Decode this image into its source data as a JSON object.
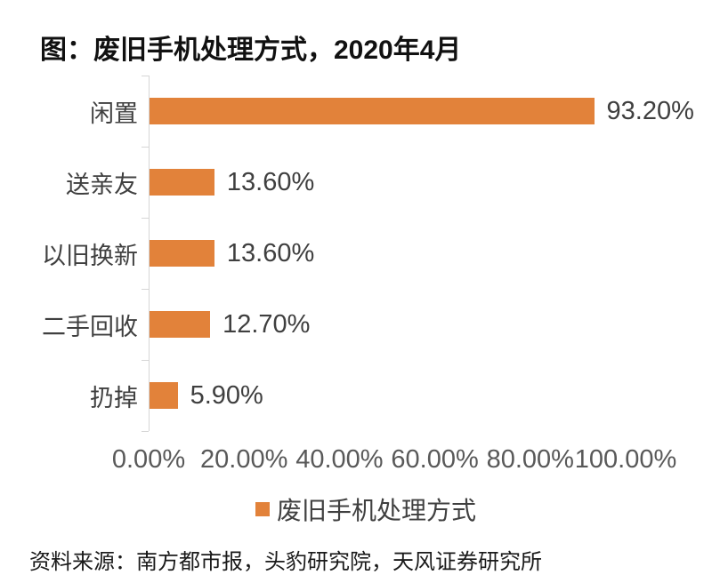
{
  "chart": {
    "title": "图：废旧手机处理方式，2020年4月"
  },
  "chart_data": {
    "type": "bar",
    "orientation": "horizontal",
    "title": "图：废旧手机处理方式，2020年4月",
    "categories": [
      "闲置",
      "送亲友",
      "以旧换新",
      "二手回收",
      "扔掉"
    ],
    "values": [
      93.2,
      13.6,
      13.6,
      12.7,
      5.9
    ],
    "value_labels": [
      "93.20%",
      "13.60%",
      "13.60%",
      "12.70%",
      "5.90%"
    ],
    "x_ticks": [
      "0.00%",
      "20.00%",
      "40.00%",
      "60.00%",
      "80.00%",
      "100.00%"
    ],
    "x_tick_values": [
      0,
      20,
      40,
      60,
      80,
      100
    ],
    "xlim": [
      0,
      100
    ],
    "xlabel": "",
    "ylabel": "",
    "grid": false,
    "legend": [
      "废旧手机处理方式"
    ],
    "legend_position": "bottom",
    "bar_color": "#e2823a"
  },
  "colors": {
    "bar": "#e2823a",
    "axis_line": "#d6d6d6",
    "tick_label": "#595959",
    "data_label": "#3f3f3f",
    "category_label": "#404040"
  },
  "footer": {
    "source": "资料来源：南方都市报，头豹研究院，天风证券研究所"
  }
}
